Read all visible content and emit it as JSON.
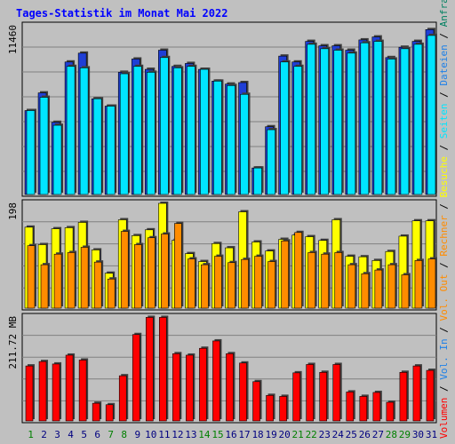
{
  "title": "Tages-Statistik im Monat Mai 2022",
  "colors": {
    "background": "#c0c0c0",
    "title": "#0000ff",
    "grid": "#808080",
    "anfragen": "#1f3fd6",
    "dateien": "#1d80e8",
    "seiten": "#00e5ff",
    "besuche": "#ffff00",
    "rechner": "#ff8c00",
    "volumen": "#ff0000",
    "weekday_label": "#000080",
    "weekend_label": "#008000"
  },
  "chart_data": [
    {
      "type": "bar",
      "axis_label": "11460",
      "legend": [
        {
          "name": "Anfragen",
          "color": "#1f3fd6"
        },
        {
          "name": "Dateien",
          "color": "#1d80e8"
        },
        {
          "name": "Seiten",
          "color": "#00e5ff"
        }
      ],
      "categories": [
        "1",
        "2",
        "3",
        "4",
        "5",
        "6",
        "7",
        "8",
        "9",
        "10",
        "11",
        "12",
        "13",
        "14",
        "15",
        "16",
        "17",
        "18",
        "19",
        "20",
        "21",
        "22",
        "23",
        "24",
        "25",
        "26",
        "27",
        "28",
        "29",
        "30",
        "31"
      ],
      "ylim": [
        0,
        11460
      ],
      "series": [
        {
          "name": "Anfragen",
          "values": [
            5700,
            6900,
            4900,
            9000,
            9600,
            6500,
            6000,
            8300,
            9200,
            8500,
            9800,
            8700,
            8900,
            8500,
            7700,
            7500,
            7600,
            1800,
            4600,
            9400,
            9000,
            10400,
            10100,
            10100,
            9800,
            10500,
            10700,
            9300,
            10000,
            10400,
            11200
          ]
        },
        {
          "name": "Seiten",
          "values": [
            5700,
            6600,
            4700,
            8700,
            8600,
            6500,
            6000,
            8200,
            8700,
            8300,
            9300,
            8600,
            8700,
            8500,
            7700,
            7400,
            6800,
            1800,
            4400,
            9000,
            8700,
            10200,
            9900,
            9800,
            9600,
            10300,
            10400,
            9200,
            9900,
            10200,
            10800
          ]
        }
      ]
    },
    {
      "type": "bar",
      "axis_label": "198",
      "legend": [
        {
          "name": "Besuche",
          "color": "#ffff00"
        },
        {
          "name": "Rechner",
          "color": "#ff8c00"
        }
      ],
      "ylim": [
        0,
        198
      ],
      "series": [
        {
          "name": "Besuche",
          "values": [
            153,
            120,
            150,
            152,
            162,
            110,
            66,
            167,
            137,
            148,
            198,
            128,
            103,
            88,
            122,
            114,
            182,
            125,
            108,
            130,
            138,
            135,
            128,
            167,
            98,
            97,
            90,
            107,
            136,
            165,
            165
          ]
        },
        {
          "name": "Rechner",
          "values": [
            118,
            82,
            102,
            105,
            115,
            87,
            55,
            145,
            120,
            133,
            140,
            160,
            93,
            82,
            98,
            86,
            92,
            98,
            88,
            127,
            143,
            105,
            102,
            105,
            82,
            65,
            72,
            82,
            63,
            90,
            93
          ]
        }
      ]
    },
    {
      "type": "bar",
      "axis_label": "211.72 MB",
      "legend": [
        {
          "name": "Volumen",
          "color": "#ff0000"
        },
        {
          "name": "Vol. In",
          "color": "#1d80e8"
        },
        {
          "name": "Vol. Out",
          "color": "#ff8c00"
        }
      ],
      "ylim": [
        0,
        211.72
      ],
      "series": [
        {
          "name": "Volumen",
          "values": [
            112,
            121,
            116,
            134,
            124,
            36,
            33,
            92,
            176,
            211,
            211,
            137,
            134,
            148,
            163,
            137,
            118,
            80,
            52,
            50,
            98,
            115,
            99,
            115,
            59,
            50,
            58,
            38,
            99,
            112,
            103
          ]
        }
      ]
    }
  ],
  "x_labels": [
    {
      "text": "1",
      "weekend": true
    },
    {
      "text": "2",
      "weekend": false
    },
    {
      "text": "3",
      "weekend": false
    },
    {
      "text": "4",
      "weekend": false
    },
    {
      "text": "5",
      "weekend": false
    },
    {
      "text": "6",
      "weekend": false
    },
    {
      "text": "7",
      "weekend": true
    },
    {
      "text": "8",
      "weekend": true
    },
    {
      "text": "9",
      "weekend": false
    },
    {
      "text": "10",
      "weekend": false
    },
    {
      "text": "11",
      "weekend": false
    },
    {
      "text": "12",
      "weekend": false
    },
    {
      "text": "13",
      "weekend": false
    },
    {
      "text": "14",
      "weekend": true
    },
    {
      "text": "15",
      "weekend": true
    },
    {
      "text": "16",
      "weekend": false
    },
    {
      "text": "17",
      "weekend": false
    },
    {
      "text": "18",
      "weekend": false
    },
    {
      "text": "19",
      "weekend": false
    },
    {
      "text": "20",
      "weekend": false
    },
    {
      "text": "21",
      "weekend": true
    },
    {
      "text": "22",
      "weekend": true
    },
    {
      "text": "23",
      "weekend": false
    },
    {
      "text": "24",
      "weekend": false
    },
    {
      "text": "25",
      "weekend": false
    },
    {
      "text": "26",
      "weekend": false
    },
    {
      "text": "27",
      "weekend": false
    },
    {
      "text": "28",
      "weekend": true
    },
    {
      "text": "29",
      "weekend": true
    },
    {
      "text": "30",
      "weekend": false
    },
    {
      "text": "31",
      "weekend": false
    }
  ]
}
